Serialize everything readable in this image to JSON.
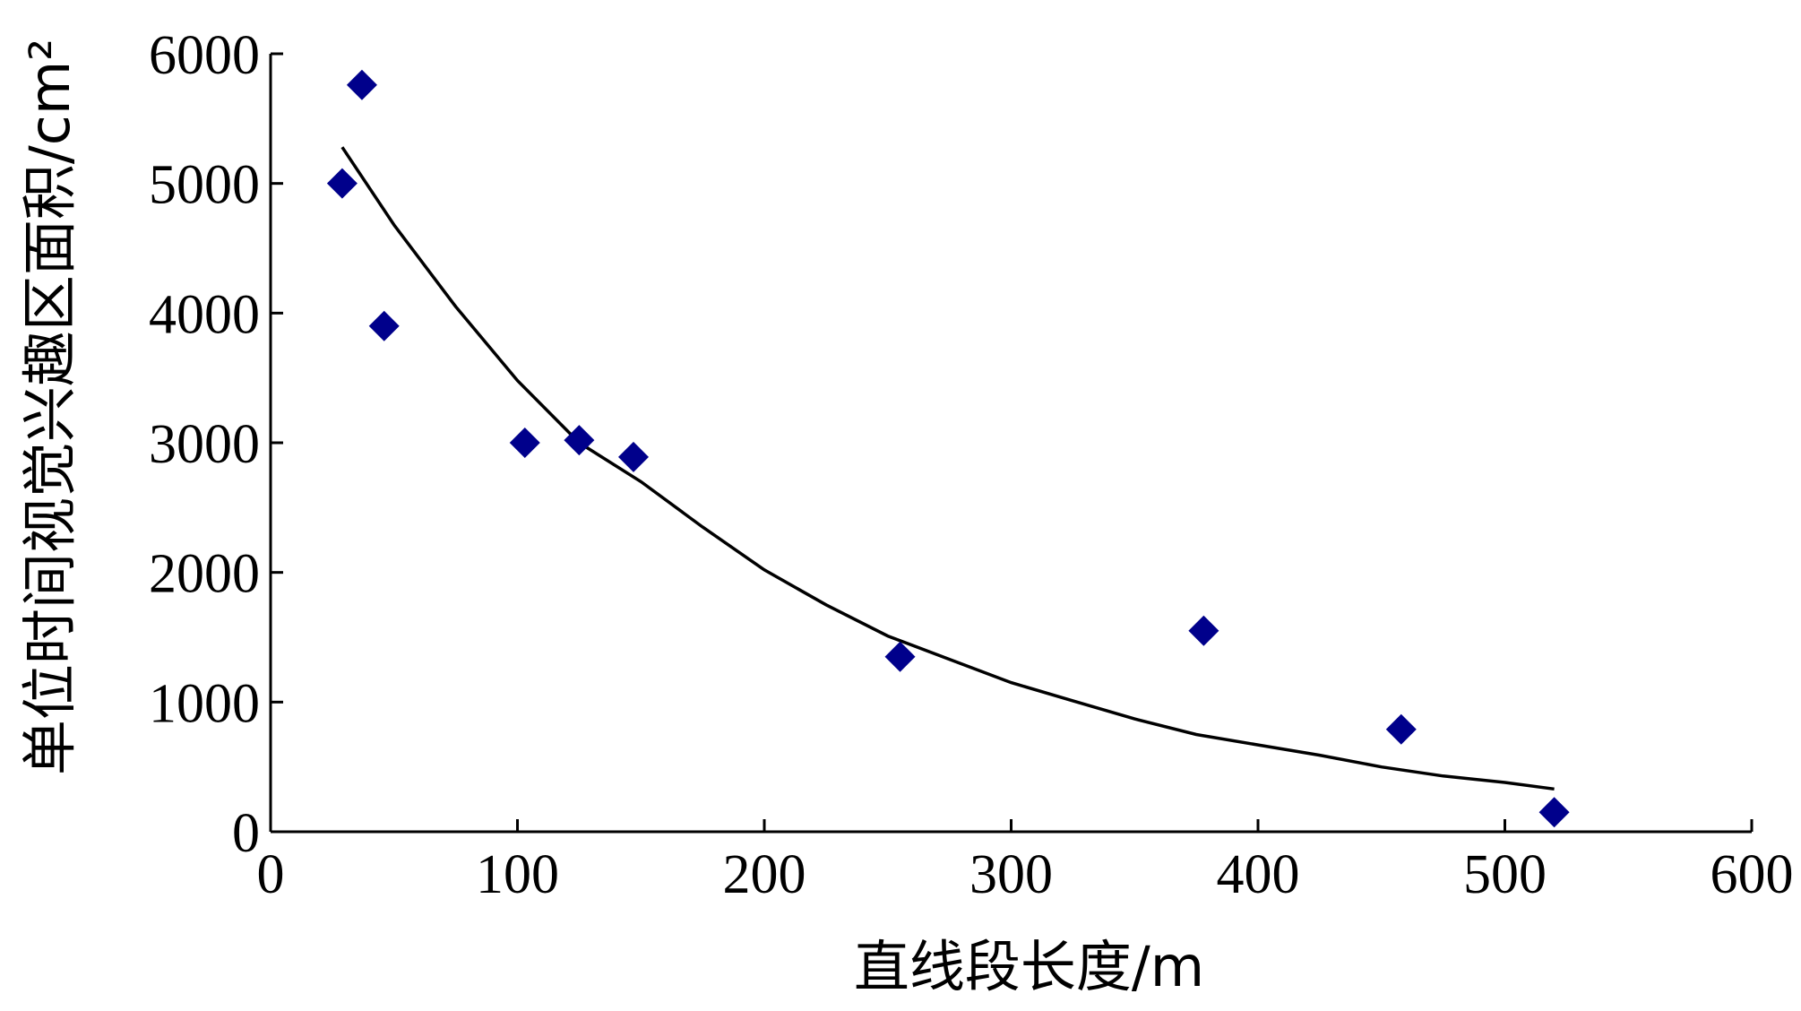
{
  "chart_data": {
    "type": "scatter",
    "xlabel": "直线段长度/m",
    "ylabel": "单位时间视觉兴趣区面积/cm²",
    "xlim": [
      0,
      600
    ],
    "ylim": [
      0,
      6000
    ],
    "x_ticks": [
      0,
      100,
      200,
      300,
      400,
      500,
      600
    ],
    "y_ticks": [
      0,
      1000,
      2000,
      3000,
      4000,
      5000,
      6000
    ],
    "grid": false,
    "legend": "none",
    "series": [
      {
        "kind": "points",
        "marker": "diamond",
        "color": "#00008b",
        "points": [
          {
            "x": 29,
            "y": 5000
          },
          {
            "x": 37,
            "y": 5760
          },
          {
            "x": 46,
            "y": 3900
          },
          {
            "x": 103,
            "y": 3000
          },
          {
            "x": 125,
            "y": 3020
          },
          {
            "x": 147,
            "y": 2890
          },
          {
            "x": 255,
            "y": 1350
          },
          {
            "x": 378,
            "y": 1550
          },
          {
            "x": 458,
            "y": 790
          },
          {
            "x": 520,
            "y": 150
          }
        ]
      },
      {
        "kind": "fit_curve",
        "color": "#000000",
        "points": [
          {
            "x": 29,
            "y": 5280
          },
          {
            "x": 50,
            "y": 4680
          },
          {
            "x": 75,
            "y": 4050
          },
          {
            "x": 100,
            "y": 3480
          },
          {
            "x": 125,
            "y": 3000
          },
          {
            "x": 150,
            "y": 2700
          },
          {
            "x": 175,
            "y": 2350
          },
          {
            "x": 200,
            "y": 2020
          },
          {
            "x": 225,
            "y": 1750
          },
          {
            "x": 250,
            "y": 1510
          },
          {
            "x": 275,
            "y": 1330
          },
          {
            "x": 300,
            "y": 1150
          },
          {
            "x": 325,
            "y": 1010
          },
          {
            "x": 350,
            "y": 870
          },
          {
            "x": 375,
            "y": 750
          },
          {
            "x": 400,
            "y": 670
          },
          {
            "x": 425,
            "y": 590
          },
          {
            "x": 450,
            "y": 500
          },
          {
            "x": 475,
            "y": 430
          },
          {
            "x": 500,
            "y": 380
          },
          {
            "x": 520,
            "y": 330
          }
        ]
      }
    ]
  }
}
